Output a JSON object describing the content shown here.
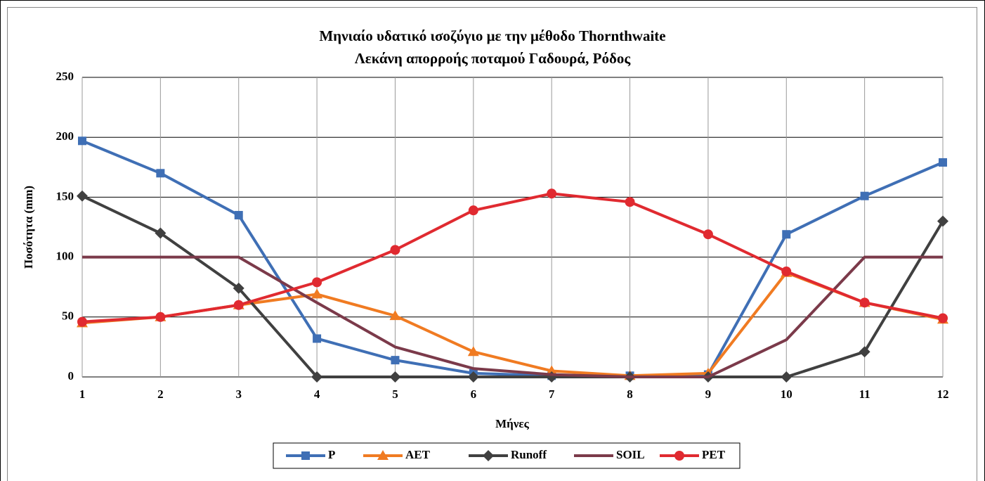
{
  "chart_data": {
    "type": "line",
    "title": [
      "Μηνιαίο υδατικό ισοζύγιο με την μέθοδο Thornthwaite",
      "Λεκάνη απορροής ποταμού Γαδουρά, Ρόδος"
    ],
    "xlabel": "Μήνες",
    "ylabel": "Ποσότητα (mm)",
    "x": [
      1,
      2,
      3,
      4,
      5,
      6,
      7,
      8,
      9,
      10,
      11,
      12
    ],
    "xlim": [
      1,
      12
    ],
    "xticks": [
      1,
      2,
      3,
      4,
      5,
      6,
      7,
      8,
      9,
      10,
      11,
      12
    ],
    "ylim": [
      0,
      250
    ],
    "yticks": [
      0,
      50,
      100,
      150,
      200,
      250
    ],
    "grid": true,
    "legend": "bottom",
    "series": [
      {
        "name": "P",
        "color": "#3f6fb5",
        "marker": "square",
        "values": [
          197,
          170,
          135,
          32,
          14,
          3,
          1,
          1,
          2,
          119,
          151,
          179
        ]
      },
      {
        "name": "AET",
        "color": "#f07b22",
        "marker": "triangle",
        "values": [
          45,
          50,
          60,
          69,
          51,
          21,
          5,
          1,
          3,
          87,
          62,
          48
        ]
      },
      {
        "name": "Runoff",
        "color": "#404040",
        "marker": "diamond",
        "values": [
          151,
          120,
          74,
          0,
          0,
          0,
          0,
          0,
          0,
          0,
          21,
          130
        ]
      },
      {
        "name": "SOIL",
        "color": "#7b3a4a",
        "marker": "none",
        "values": [
          100,
          100,
          100,
          62,
          25,
          7,
          2,
          0,
          0,
          31,
          100,
          100
        ]
      },
      {
        "name": "PET",
        "color": "#e02a30",
        "marker": "circle",
        "values": [
          46,
          50,
          60,
          79,
          106,
          139,
          153,
          146,
          119,
          88,
          62,
          49
        ]
      }
    ]
  }
}
